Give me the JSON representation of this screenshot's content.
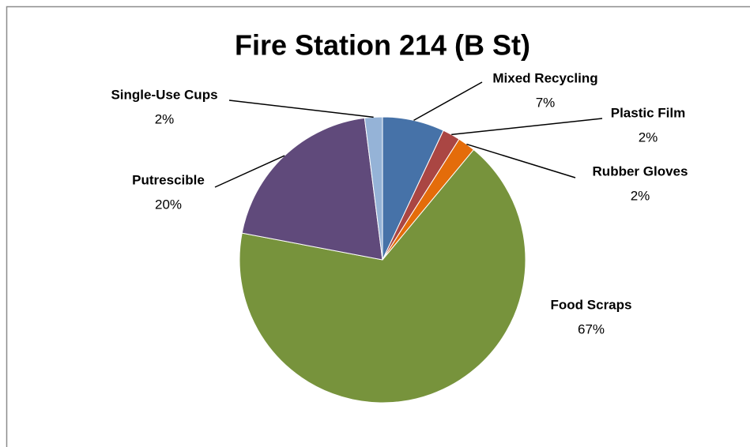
{
  "chart_data": {
    "type": "pie",
    "title": "Fire Station 214 (B St)",
    "categories": [
      "Mixed Recycling",
      "Plastic Film",
      "Rubber Gloves",
      "Food Scraps",
      "Putrescible",
      "Single-Use Cups"
    ],
    "values": [
      7,
      2,
      2,
      67,
      20,
      2
    ],
    "value_labels": [
      "7%",
      "2%",
      "2%",
      "67%",
      "20%",
      "2%"
    ],
    "colors": [
      "#4672a8",
      "#aa4643",
      "#e46c0a",
      "#77933c",
      "#604a7b",
      "#95b3d7"
    ]
  }
}
